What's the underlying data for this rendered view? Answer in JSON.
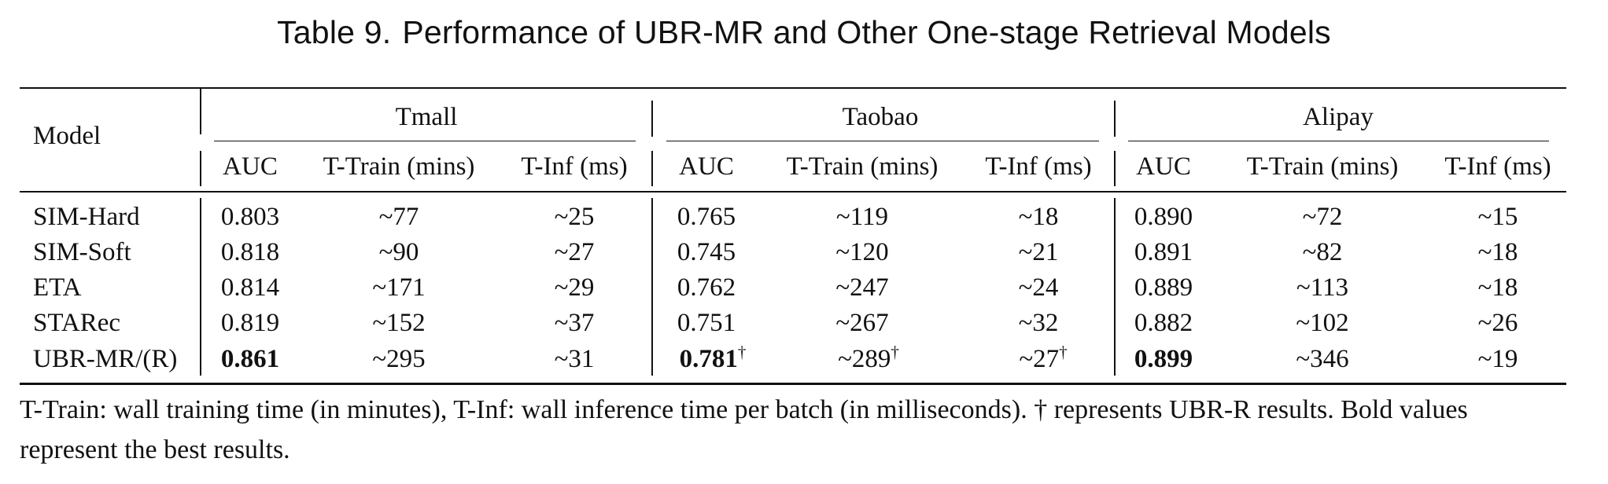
{
  "caption": {
    "number": "Table 9.",
    "title": "Performance of UBR-MR and Other One-stage Retrieval Models"
  },
  "header": {
    "model": "Model",
    "groups": [
      "Tmall",
      "Taobao",
      "Alipay"
    ],
    "subcols": [
      "AUC",
      "T-Train (mins)",
      "T-Inf (ms)"
    ]
  },
  "rows": [
    {
      "model": "SIM-Hard",
      "cells": [
        "0.803",
        "~77",
        "~25",
        "0.765",
        "~119",
        "~18",
        "0.890",
        "~72",
        "~15"
      ]
    },
    {
      "model": "SIM-Soft",
      "cells": [
        "0.818",
        "~90",
        "~27",
        "0.745",
        "~120",
        "~21",
        "0.891",
        "~82",
        "~18"
      ]
    },
    {
      "model": "ETA",
      "cells": [
        "0.814",
        "~171",
        "~29",
        "0.762",
        "~247",
        "~24",
        "0.889",
        "~113",
        "~18"
      ]
    },
    {
      "model": "STARec",
      "cells": [
        "0.819",
        "~152",
        "~37",
        "0.751",
        "~267",
        "~32",
        "0.882",
        "~102",
        "~26"
      ]
    },
    {
      "model": "UBR-MR/(R)",
      "cells": [
        "0.861",
        "~295",
        "~31",
        "0.781",
        "~289",
        "~27",
        "0.899",
        "~346",
        "~19"
      ]
    }
  ],
  "dagger": "†",
  "footnote": "T-Train: wall training time (in minutes), T-Inf: wall inference time per batch (in milliseconds). † represents UBR-R results. Bold values represent the best results."
}
